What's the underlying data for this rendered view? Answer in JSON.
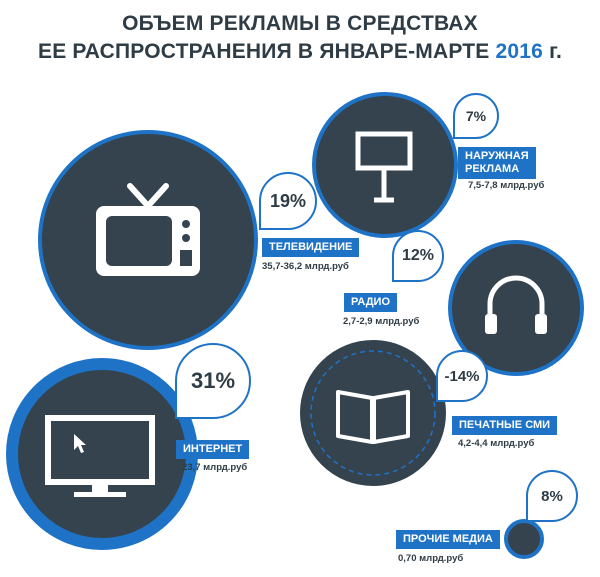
{
  "header": {
    "title_line1": "ОБЪЕМ РЕКЛАМЫ В СРЕДСТВАХ",
    "title_line2": "ЕЕ РАСПРОСТРАНЕНИЯ В ЯНВАРЕ-МАРТЕ",
    "year": "2016",
    "suffix": " г."
  },
  "media": {
    "outdoor": {
      "percent": "7%",
      "label_line1": "НАРУЖНАЯ",
      "label_line2": "РЕКЛАМА",
      "value": "7,5-7,8 млрд.руб",
      "icon": "billboard-icon"
    },
    "tv": {
      "percent": "19%",
      "label": "ТЕЛЕВИДЕНИЕ",
      "value": "35,7-36,2 млрд.руб",
      "icon": "tv-icon"
    },
    "radio": {
      "percent": "12%",
      "label": "РАДИО",
      "value": "2,7-2,9 млрд.руб",
      "icon": "headphones-icon"
    },
    "internet": {
      "percent": "31%",
      "label": "ИНТЕРНЕТ",
      "value": "23,7 млрд.руб",
      "icon": "monitor-icon"
    },
    "print": {
      "percent": "-14%",
      "label": "ПЕЧАТНЫЕ СМИ",
      "value": "4,2-4,4 млрд.руб",
      "icon": "book-icon"
    },
    "other": {
      "percent": "8%",
      "label": "ПРОЧИЕ МЕДИА",
      "value": "0,70 млрд.руб"
    }
  },
  "colors": {
    "circle": "#34434e",
    "accent": "#1f73c7",
    "text": "#2f3c46"
  }
}
